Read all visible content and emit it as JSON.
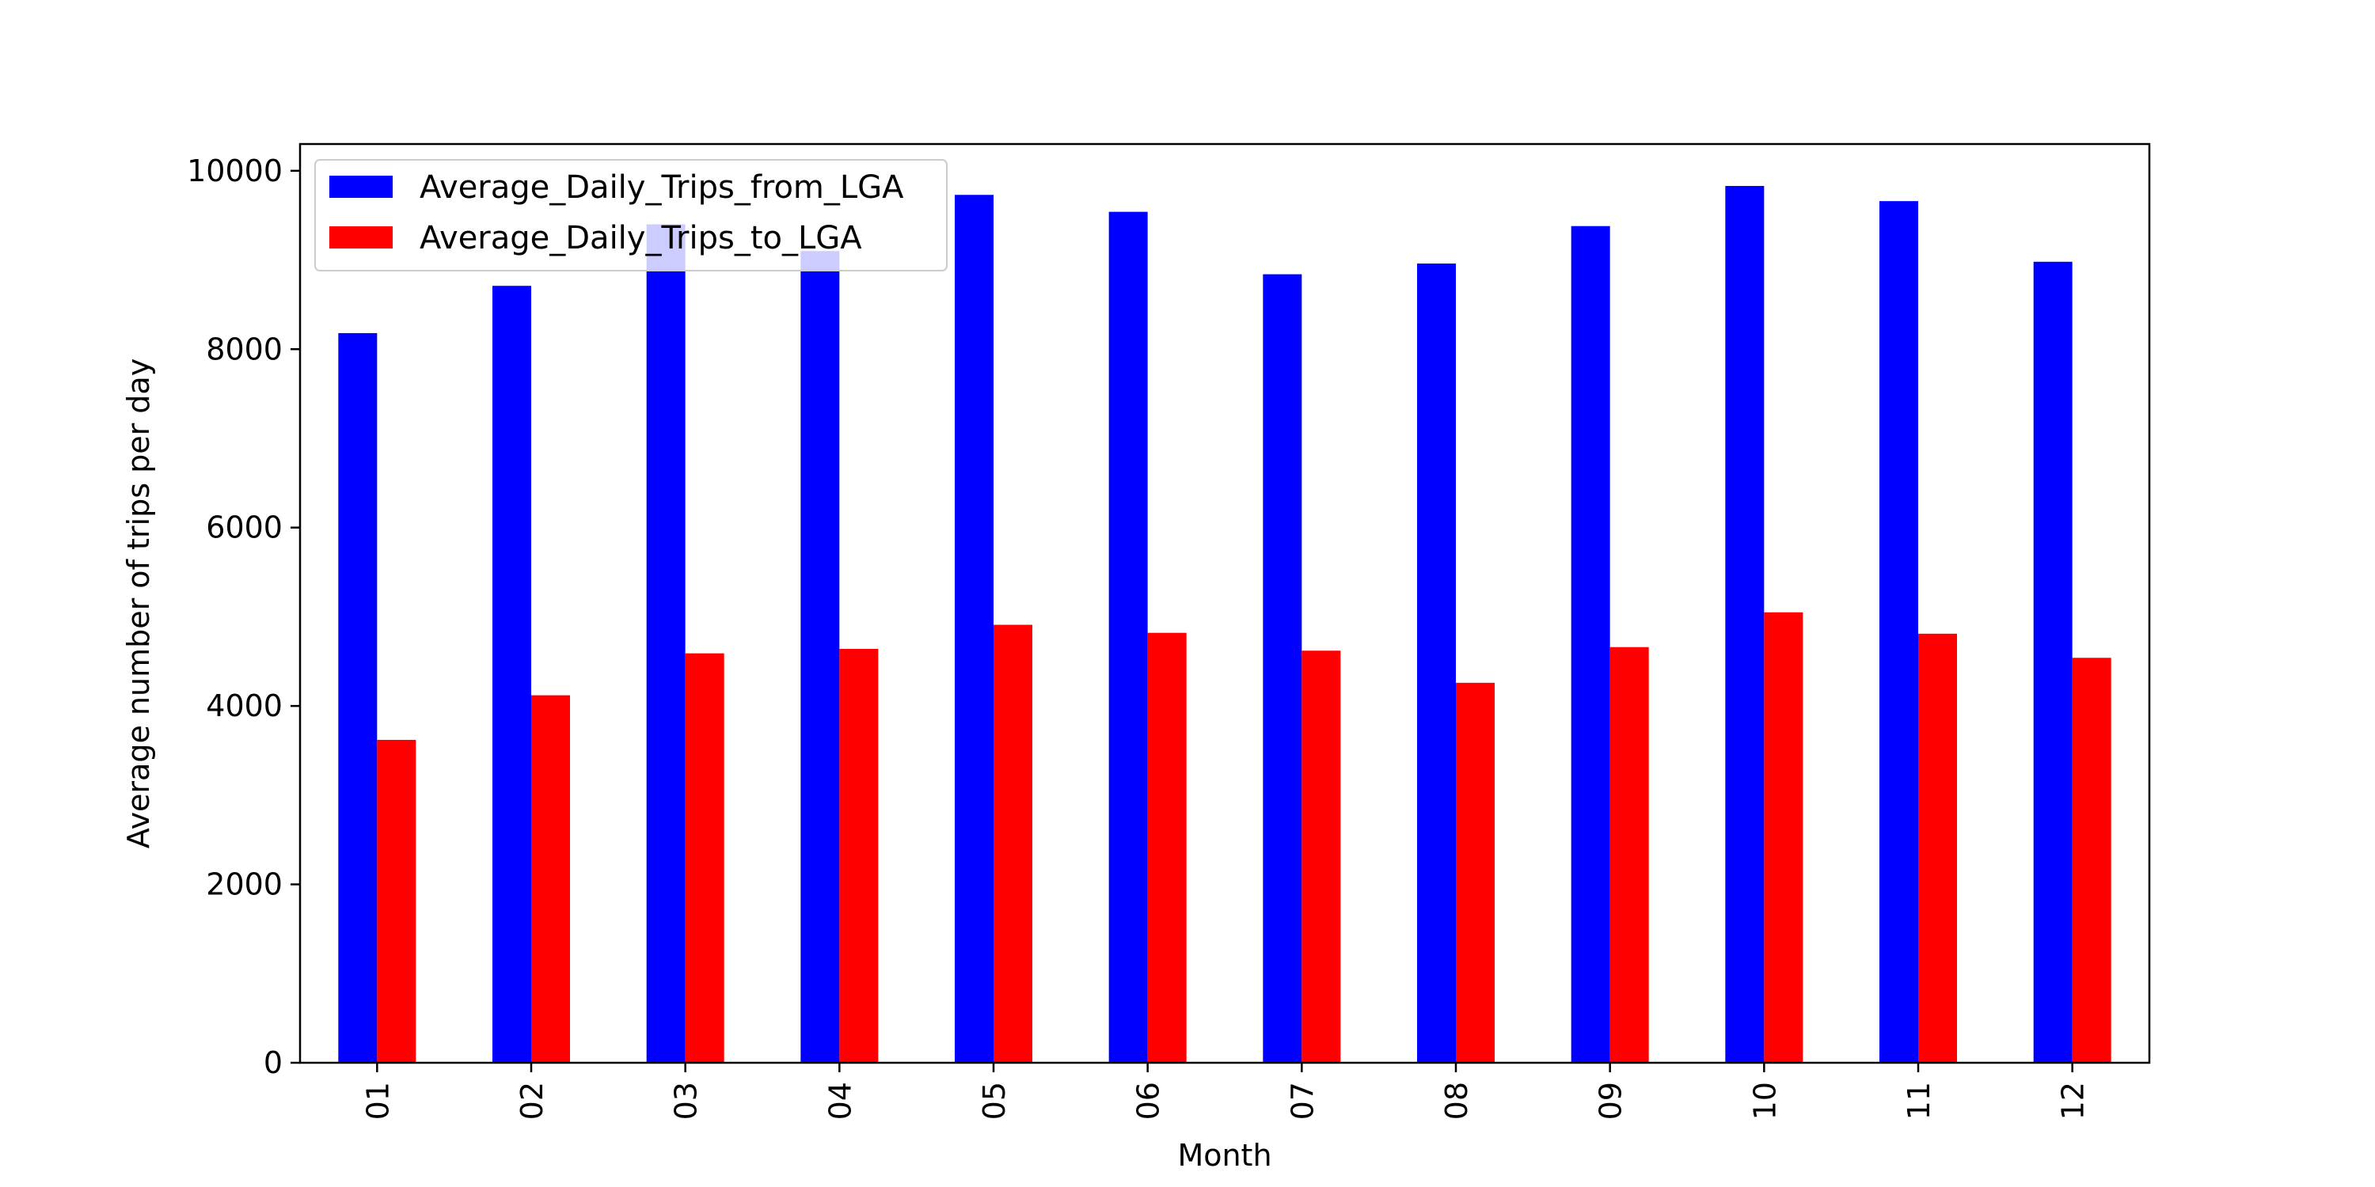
{
  "chart_data": {
    "type": "bar",
    "title": "",
    "xlabel": "Month",
    "ylabel": "Average number of trips per day",
    "categories": [
      "01",
      "02",
      "03",
      "04",
      "05",
      "06",
      "07",
      "08",
      "09",
      "10",
      "11",
      "12"
    ],
    "series": [
      {
        "name": "Average_Daily_Trips_from_LGA",
        "color": "#0000ff",
        "values": [
          8180,
          8710,
          9400,
          9100,
          9730,
          9540,
          8840,
          8960,
          9380,
          9830,
          9660,
          8980
        ]
      },
      {
        "name": "Average_Daily_Trips_to_LGA",
        "color": "#ff0000",
        "values": [
          3620,
          4120,
          4590,
          4640,
          4910,
          4820,
          4620,
          4260,
          4660,
          5050,
          4810,
          4540
        ]
      }
    ],
    "ylim": [
      0,
      10300
    ],
    "yticks": [
      0,
      2000,
      4000,
      6000,
      8000,
      10000
    ],
    "grid": false,
    "legend_position": "top-left"
  }
}
